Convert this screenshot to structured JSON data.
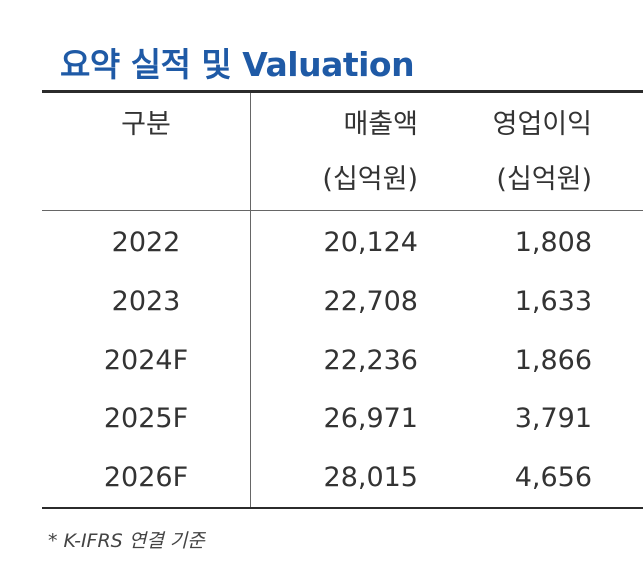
{
  "title": "요약 실적 및 Valuation",
  "table": {
    "headers": {
      "category": "구분",
      "sales": "매출액",
      "sales_unit": "(십억원)",
      "op_income": "영업이익",
      "op_income_unit": "(십억원)"
    },
    "rows": [
      {
        "year": "2022",
        "sales": "20,124",
        "op_income": "1,808"
      },
      {
        "year": "2023",
        "sales": "22,708",
        "op_income": "1,633"
      },
      {
        "year": "2024F",
        "sales": "22,236",
        "op_income": "1,866"
      },
      {
        "year": "2025F",
        "sales": "26,971",
        "op_income": "3,791"
      },
      {
        "year": "2026F",
        "sales": "28,015",
        "op_income": "4,656"
      }
    ]
  },
  "footnote": "* K-IFRS 연결 기준"
}
